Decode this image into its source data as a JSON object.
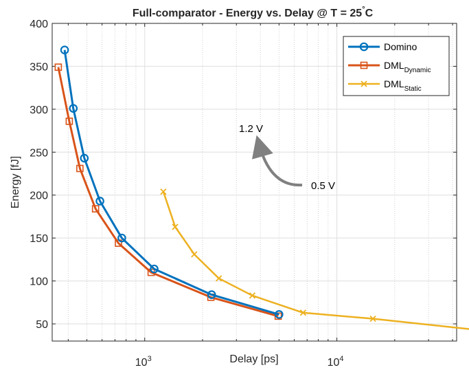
{
  "chart_data": {
    "type": "line",
    "title_main": "Full-comparator - Energy vs. Delay @ T = 25",
    "title_degree": "°",
    "title_unit": "C",
    "xlabel": "Delay [ps]",
    "ylabel": "Energy [fJ]",
    "x_scale": "log",
    "xlim": [
      330,
      42000
    ],
    "ylim": [
      30,
      400
    ],
    "grid": true,
    "legend_position": "top-right",
    "y_ticks": [
      50,
      100,
      150,
      200,
      250,
      300,
      350,
      400
    ],
    "x_ticks": [
      {
        "value": 1000,
        "base": "10",
        "exp": "3"
      },
      {
        "value": 10000,
        "base": "10",
        "exp": "4"
      }
    ],
    "series": [
      {
        "name": "Domino",
        "name_sub": "",
        "color": "#0072BD",
        "marker": "circle",
        "x": [
          383,
          425,
          485,
          585,
          760,
          1120,
          2230,
          5000
        ],
        "y": [
          369,
          301,
          243,
          193,
          150,
          114,
          84,
          61
        ]
      },
      {
        "name": "DML",
        "name_sub": "Dynamic",
        "color": "#D95319",
        "marker": "square",
        "x": [
          355,
          405,
          460,
          555,
          730,
          1080,
          2210,
          4950
        ],
        "y": [
          349,
          286,
          231,
          184,
          144,
          110,
          81,
          59
        ]
      },
      {
        "name": "DML",
        "name_sub": "Static",
        "color": "#EDB120",
        "marker": "x",
        "x": [
          1250,
          1440,
          1810,
          2430,
          3630,
          6670,
          15400,
          65000
        ],
        "y": [
          204,
          163,
          131,
          103,
          83,
          63,
          56,
          41
        ]
      }
    ],
    "annotations": {
      "high_vdd": "1.2 V",
      "low_vdd": "0.5 V",
      "arrow_color": "#808080"
    }
  }
}
